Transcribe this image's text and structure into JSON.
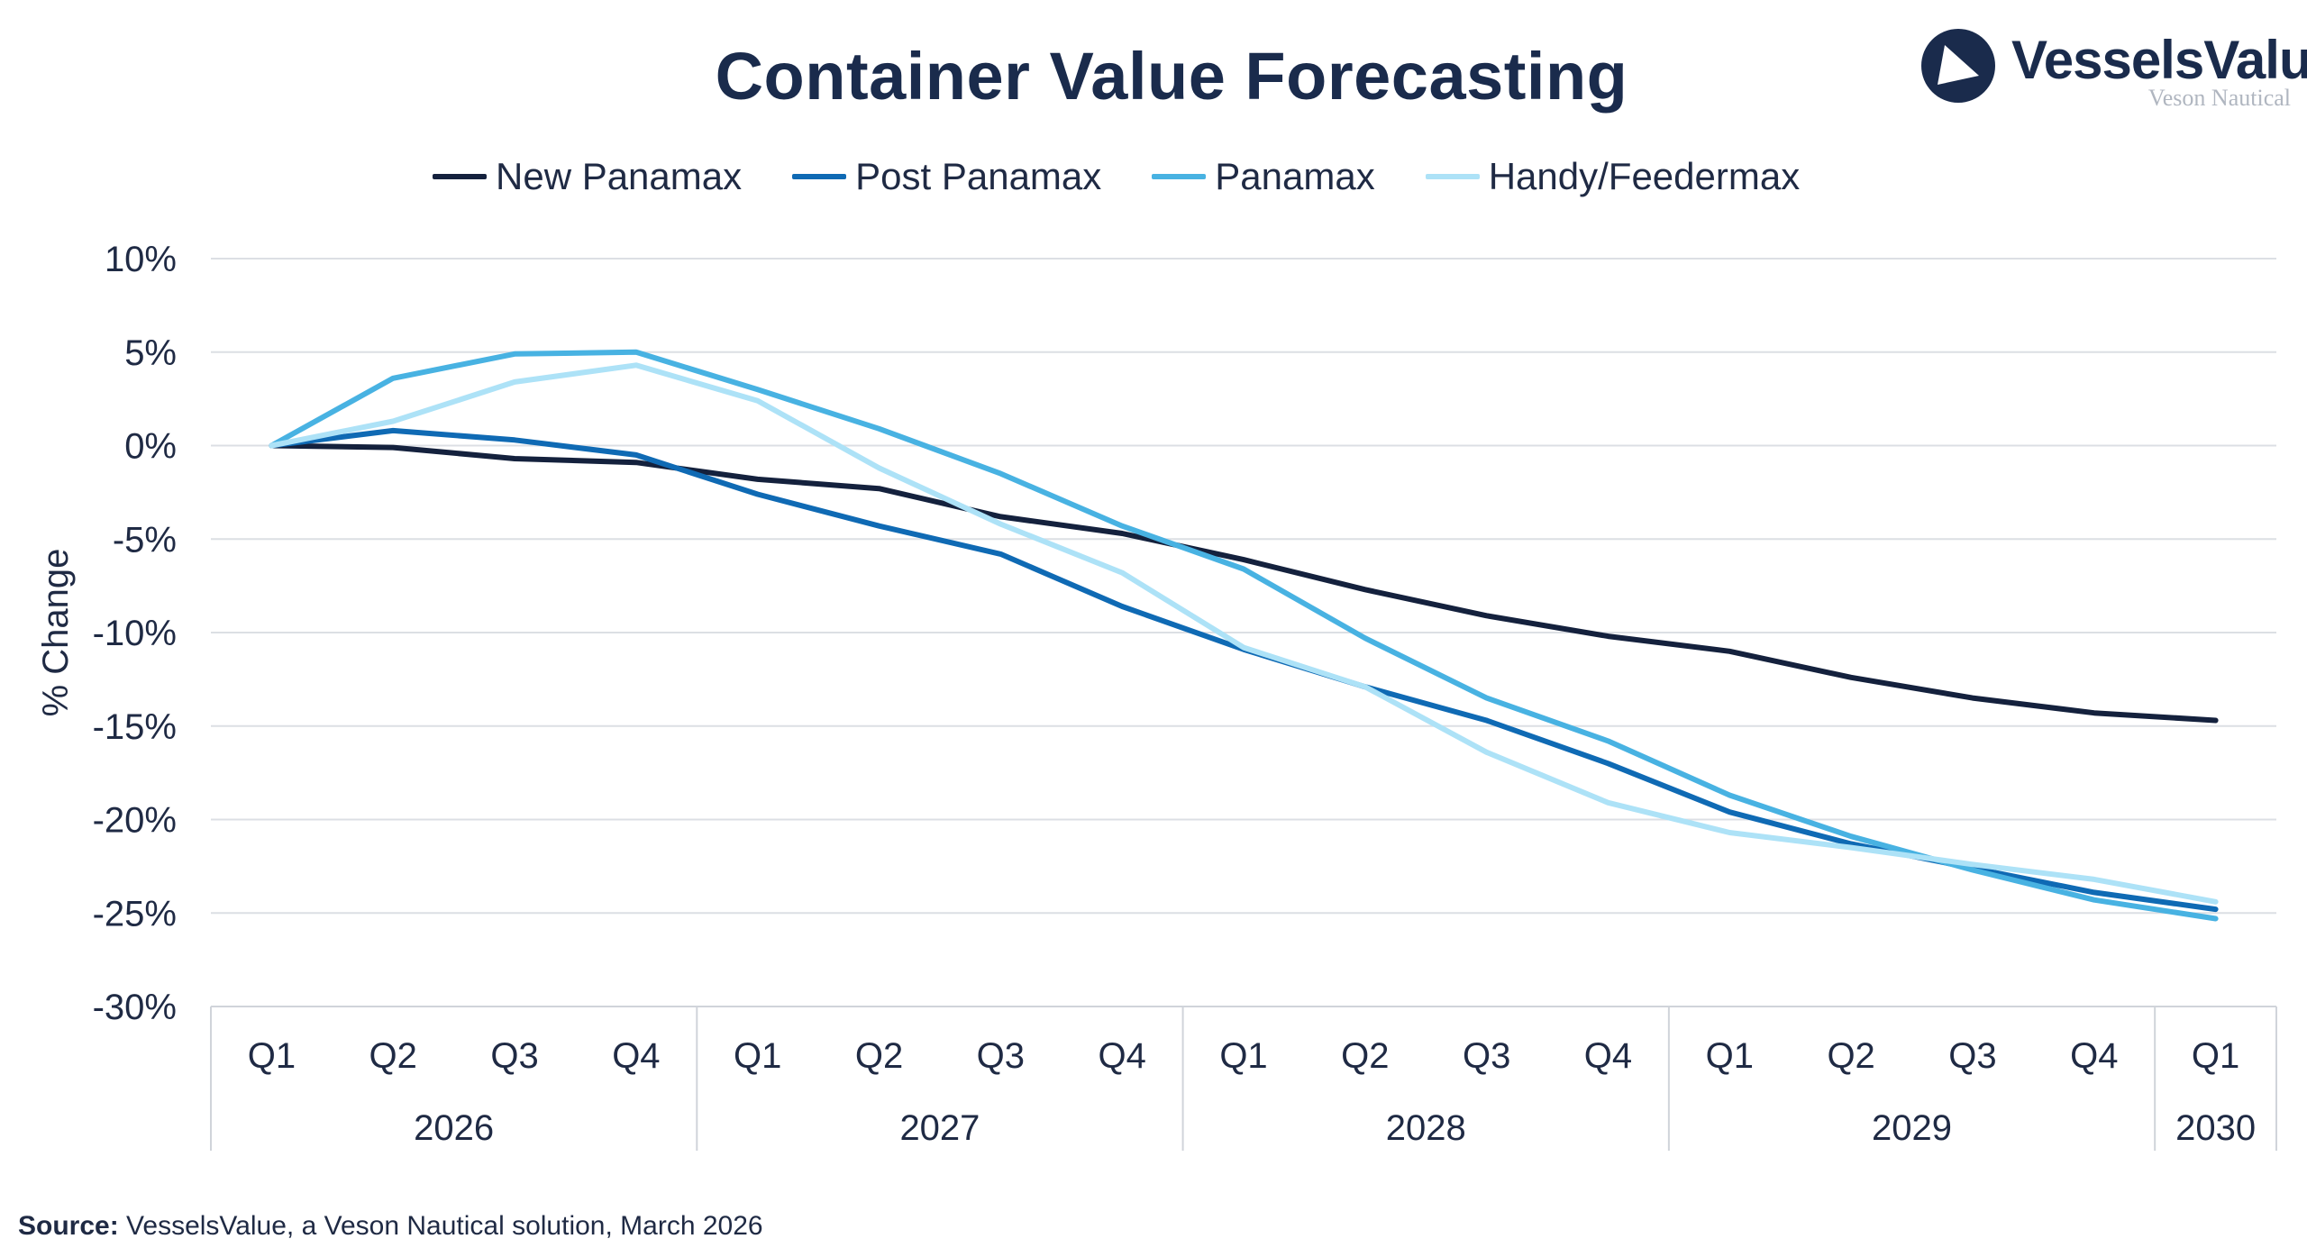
{
  "title": "Container Value Forecasting",
  "logo": {
    "name": "VesselsValue",
    "subtitle": "Veson Nautical",
    "icon": "vesselsvalue-logo-icon"
  },
  "source": {
    "label": "Source:",
    "text": " VesselsValue, a Veson Nautical solution, March 2026"
  },
  "chart_data": {
    "type": "line",
    "ylabel": "% Change",
    "ylim": [
      -30,
      10
    ],
    "yticks": [
      10,
      5,
      0,
      -5,
      -10,
      -15,
      -20,
      -25,
      -30
    ],
    "ytick_labels": [
      "10%",
      "5%",
      "0%",
      "-5%",
      "-10%",
      "-15%",
      "-20%",
      "-25%",
      "-30%"
    ],
    "categories": [
      "Q1",
      "Q2",
      "Q3",
      "Q4",
      "Q1",
      "Q2",
      "Q3",
      "Q4",
      "Q1",
      "Q2",
      "Q3",
      "Q4",
      "Q1",
      "Q2",
      "Q3",
      "Q4",
      "Q1"
    ],
    "year_groups": [
      {
        "label": "2026",
        "count": 4
      },
      {
        "label": "2027",
        "count": 4
      },
      {
        "label": "2028",
        "count": 4
      },
      {
        "label": "2029",
        "count": 4
      },
      {
        "label": "2030",
        "count": 1
      }
    ],
    "grid": true,
    "legend_position": "top",
    "series": [
      {
        "name": "New Panamax",
        "color": "#14213d",
        "values": [
          0,
          -0.1,
          -0.7,
          -0.9,
          -1.8,
          -2.3,
          -3.8,
          -4.7,
          -6.1,
          -7.7,
          -9.1,
          -10.2,
          -11.0,
          -12.4,
          -13.5,
          -14.3,
          -14.7
        ]
      },
      {
        "name": "Post Panamax",
        "color": "#0f6ab4",
        "values": [
          0,
          0.8,
          0.3,
          -0.5,
          -2.6,
          -4.3,
          -5.8,
          -8.6,
          -10.9,
          -12.9,
          -14.7,
          -17.0,
          -19.6,
          -21.3,
          -22.6,
          -23.9,
          -24.8
        ]
      },
      {
        "name": "Panamax",
        "color": "#48b2e2",
        "values": [
          0,
          3.6,
          4.9,
          5.0,
          3.0,
          0.9,
          -1.5,
          -4.3,
          -6.6,
          -10.3,
          -13.5,
          -15.8,
          -18.7,
          -20.9,
          -22.7,
          -24.3,
          -25.3
        ]
      },
      {
        "name": "Handy/Feedermax",
        "color": "#ade2f7",
        "values": [
          0,
          1.3,
          3.4,
          4.3,
          2.4,
          -1.2,
          -4.2,
          -6.8,
          -10.8,
          -12.9,
          -16.4,
          -19.1,
          -20.7,
          -21.5,
          -22.4,
          -23.2,
          -24.4
        ]
      }
    ]
  }
}
